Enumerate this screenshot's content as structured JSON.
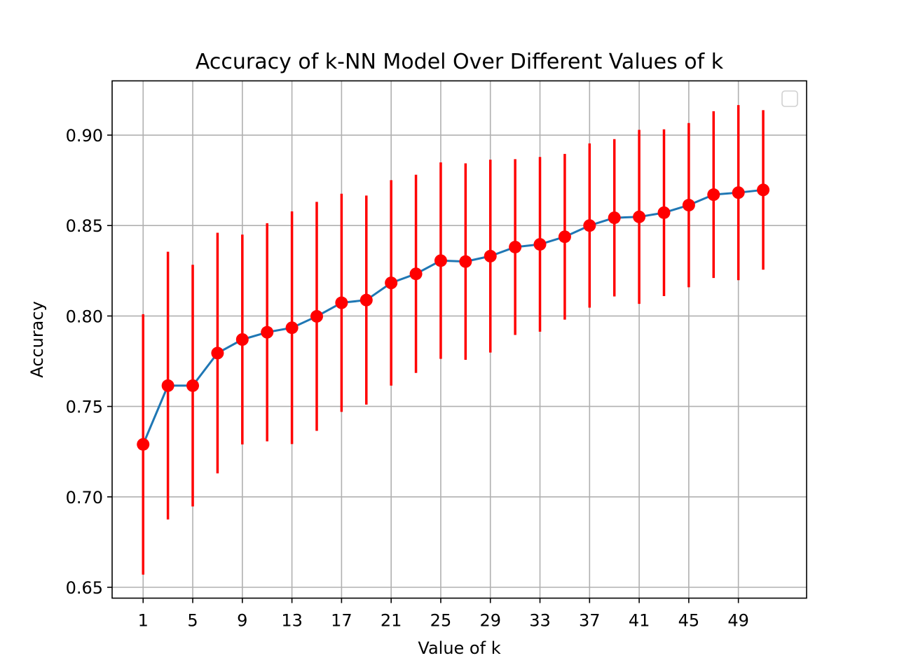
{
  "chart_data": {
    "type": "line",
    "title": "Accuracy of k-NN Model Over Different Values of k",
    "xlabel": "Value of k",
    "ylabel": "Accuracy",
    "xlim": [
      -1.5,
      54.5
    ],
    "ylim": [
      0.644,
      0.93
    ],
    "x_ticks": [
      1,
      5,
      9,
      13,
      17,
      21,
      25,
      29,
      33,
      37,
      41,
      45,
      49
    ],
    "y_ticks": [
      0.65,
      0.7,
      0.75,
      0.8,
      0.85,
      0.9
    ],
    "y_tick_labels": [
      "0.65",
      "0.70",
      "0.75",
      "0.80",
      "0.85",
      "0.90"
    ],
    "grid": true,
    "legend": "upper right (empty)",
    "colors": {
      "line": "#1f77b4",
      "marker": "#ff0000",
      "errorbar": "#ff0000",
      "grid": "#b0b0b0"
    },
    "series": [
      {
        "x": [
          1,
          3,
          5,
          7,
          9,
          11,
          13,
          15,
          17,
          19,
          21,
          23,
          25,
          27,
          29,
          31,
          33,
          35,
          37,
          39,
          41,
          43,
          45,
          47,
          49,
          51
        ],
        "values": [
          0.729,
          0.7615,
          0.7615,
          0.7795,
          0.787,
          0.791,
          0.7935,
          0.7998,
          0.8073,
          0.8088,
          0.8183,
          0.8233,
          0.8306,
          0.8301,
          0.8331,
          0.8381,
          0.8396,
          0.8438,
          0.85,
          0.8543,
          0.8548,
          0.8571,
          0.8613,
          0.8671,
          0.8682,
          0.8697
        ],
        "error": [
          0.072,
          0.074,
          0.0668,
          0.0665,
          0.058,
          0.0603,
          0.0643,
          0.0633,
          0.0603,
          0.0578,
          0.0568,
          0.0548,
          0.0543,
          0.0543,
          0.0533,
          0.0486,
          0.0483,
          0.0458,
          0.0454,
          0.0435,
          0.0481,
          0.0461,
          0.0454,
          0.0461,
          0.0484,
          0.0441
        ]
      }
    ]
  }
}
